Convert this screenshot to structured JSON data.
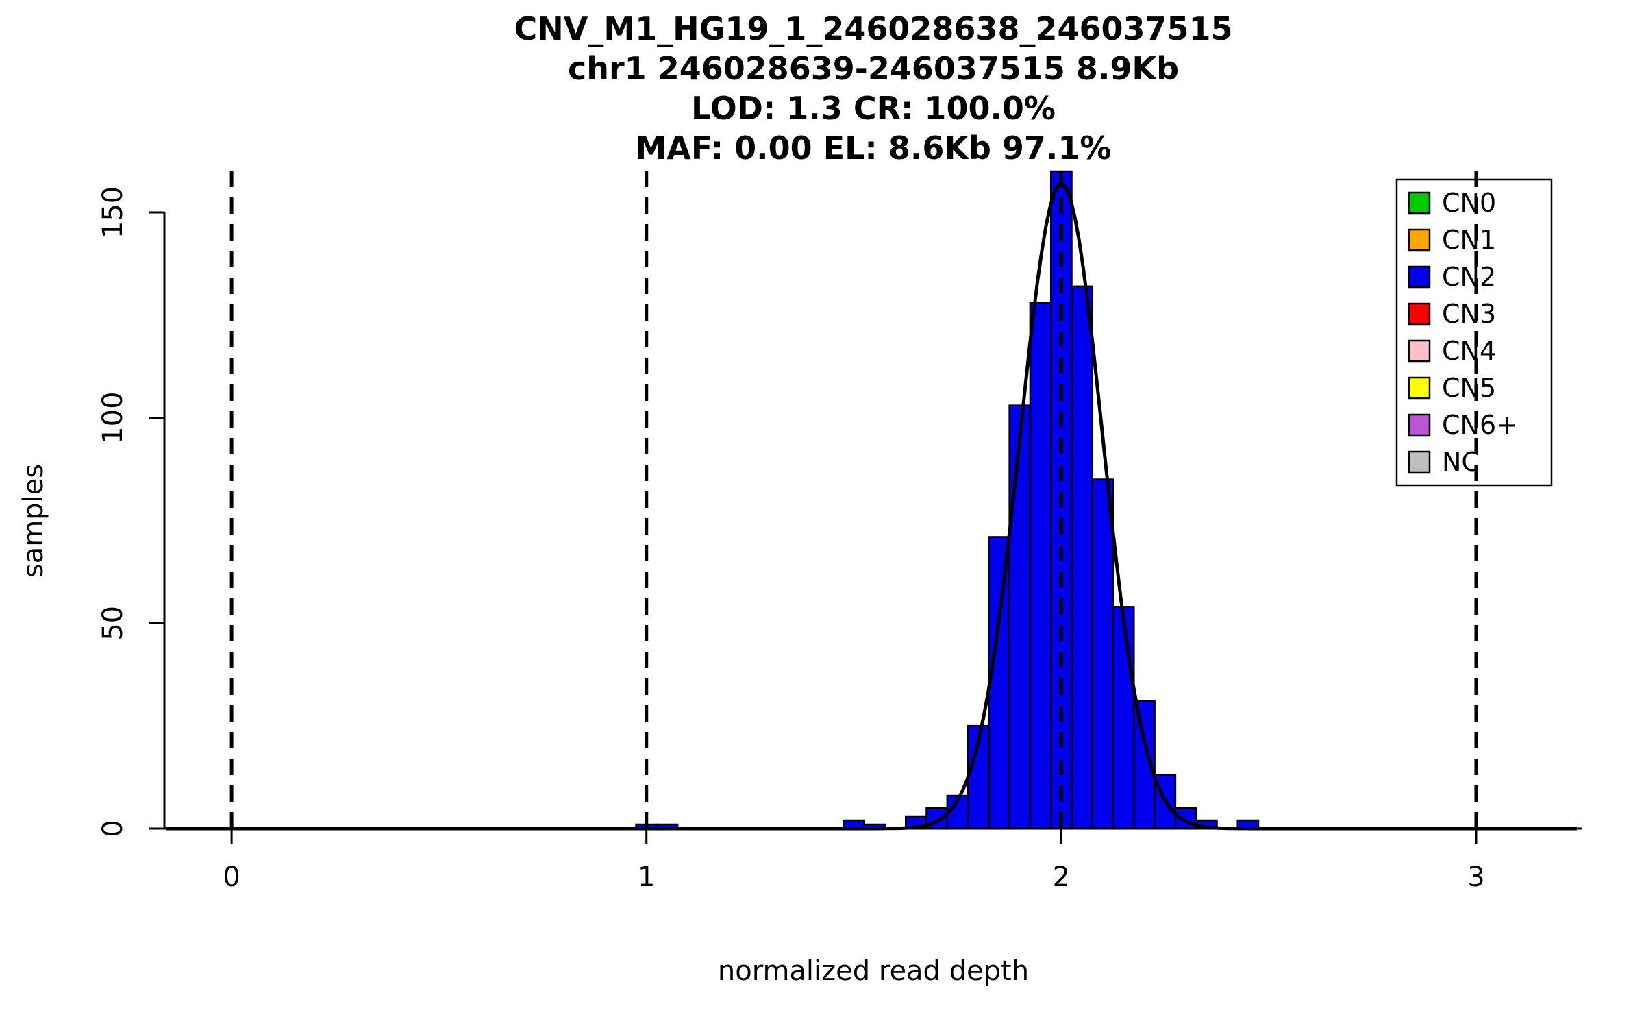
{
  "chart_data": {
    "type": "bar",
    "titles": [
      "CNV_M1_HG19_1_246028638_246037515",
      "chr1 246028639-246037515 8.9Kb",
      "LOD: 1.3 CR: 100.0%",
      "MAF: 0.00 EL: 8.6Kb 97.1%"
    ],
    "xlabel": "normalized read depth",
    "ylabel": "samples",
    "xlim": [
      -0.162,
      3.256
    ],
    "ylim": [
      0,
      160
    ],
    "x_ticks": [
      0,
      1,
      2,
      3
    ],
    "y_ticks": [
      0,
      50,
      100,
      150
    ],
    "grid": false,
    "vlines": {
      "x": [
        0,
        1,
        2,
        3
      ],
      "style": "dashed",
      "color": "#000000"
    },
    "histogram": {
      "bin_width": 0.05,
      "fill_color": "#0000EE",
      "stroke_color": "#000000",
      "bins": [
        {
          "x": 0.975,
          "count": 1
        },
        {
          "x": 1.025,
          "count": 1
        },
        {
          "x": 1.475,
          "count": 2
        },
        {
          "x": 1.525,
          "count": 1
        },
        {
          "x": 1.625,
          "count": 3
        },
        {
          "x": 1.675,
          "count": 5
        },
        {
          "x": 1.725,
          "count": 8
        },
        {
          "x": 1.775,
          "count": 25
        },
        {
          "x": 1.825,
          "count": 71
        },
        {
          "x": 1.875,
          "count": 103
        },
        {
          "x": 1.925,
          "count": 128
        },
        {
          "x": 1.975,
          "count": 160
        },
        {
          "x": 2.025,
          "count": 132
        },
        {
          "x": 2.075,
          "count": 85
        },
        {
          "x": 2.125,
          "count": 54
        },
        {
          "x": 2.175,
          "count": 31
        },
        {
          "x": 2.225,
          "count": 13
        },
        {
          "x": 2.275,
          "count": 5
        },
        {
          "x": 2.325,
          "count": 2
        },
        {
          "x": 2.425,
          "count": 2
        }
      ]
    },
    "fit_curve": {
      "type": "gaussian",
      "mean": 2.0,
      "sd": 0.1,
      "peak": 157,
      "color": "#000000"
    },
    "legend": {
      "position": "top-right",
      "entries": [
        {
          "label": "CN0",
          "color": "#00CC00"
        },
        {
          "label": "CN1",
          "color": "#FFA500"
        },
        {
          "label": "CN2",
          "color": "#0000EE"
        },
        {
          "label": "CN3",
          "color": "#FF0000"
        },
        {
          "label": "CN4",
          "color": "#FFC0CB"
        },
        {
          "label": "CN5",
          "color": "#FFFF00"
        },
        {
          "label": "CN6+",
          "color": "#BA55D3"
        },
        {
          "label": "NC",
          "color": "#BEBEBE"
        }
      ]
    }
  }
}
